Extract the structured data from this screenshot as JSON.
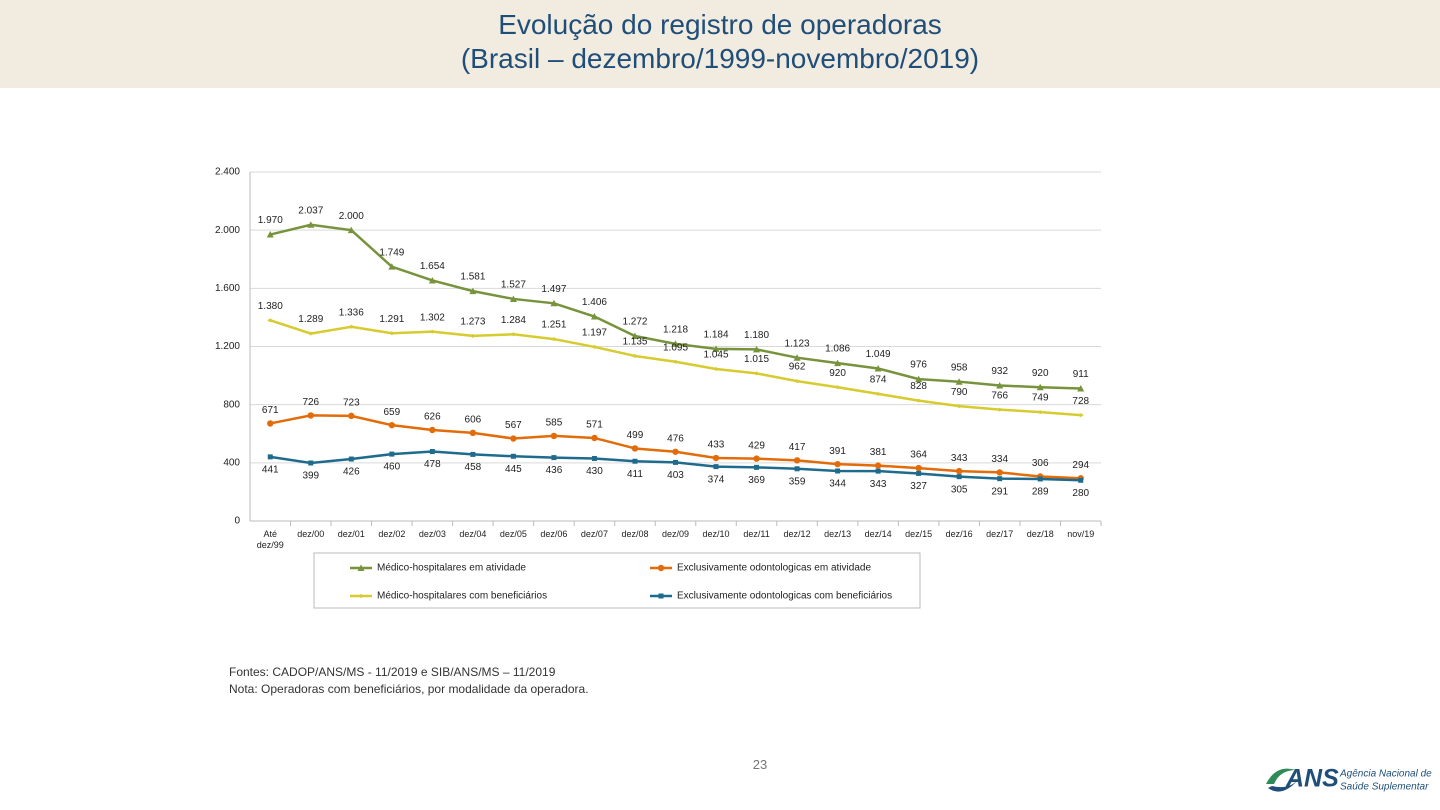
{
  "header": {
    "title": "Evolução do registro de operadoras",
    "subtitle": "(Brasil – dezembro/1999-novembro/2019)"
  },
  "chart_data": {
    "type": "line",
    "categories": [
      "Até dez/99",
      "dez/00",
      "dez/01",
      "dez/02",
      "dez/03",
      "dez/04",
      "dez/05",
      "dez/06",
      "dez/07",
      "dez/08",
      "dez/09",
      "dez/10",
      "dez/11",
      "dez/12",
      "dez/13",
      "dez/14",
      "dez/15",
      "dez/16",
      "dez/17",
      "dez/18",
      "nov/19"
    ],
    "ylim": [
      0,
      2400
    ],
    "yticks": [
      0,
      {
        "value": 400,
        "label": "400"
      },
      {
        "value": 800,
        "label": "800"
      },
      {
        "value": 1200,
        "label": "1.200"
      },
      {
        "value": 1600,
        "label": "1.600"
      },
      {
        "value": 2000,
        "label": "2.000"
      },
      {
        "value": 2400,
        "label": "2.400"
      }
    ],
    "grid": true,
    "series": [
      {
        "name": "Médico-hospitalares em atividade",
        "color": "#77933c",
        "marker": "triangle",
        "values": [
          1970,
          2037,
          2000,
          1749,
          1654,
          1581,
          1527,
          1497,
          1406,
          1272,
          1218,
          1184,
          1180,
          1123,
          1086,
          1049,
          976,
          958,
          932,
          920,
          911
        ],
        "value_labels": [
          "1.970",
          "2.037",
          "2.000",
          "1.749",
          "1.654",
          "1.581",
          "1.527",
          "1.497",
          "1.406",
          "1.272",
          "1.218",
          "1.184",
          "1.180",
          "1.123",
          "1.086",
          "1.049",
          "976",
          "958",
          "932",
          "920",
          "911"
        ]
      },
      {
        "name": "Exclusivamente odontologicas em atividade",
        "color": "#e36c0a",
        "marker": "circle",
        "values": [
          671,
          726,
          723,
          659,
          626,
          606,
          567,
          585,
          571,
          499,
          476,
          433,
          429,
          417,
          391,
          381,
          364,
          343,
          334,
          306,
          294
        ]
      },
      {
        "name": "Médico-hospitalares com beneficiários",
        "color": "#d6cb2f",
        "marker": "diamond",
        "values": [
          1380,
          1289,
          1336,
          1291,
          1302,
          1273,
          1284,
          1251,
          1197,
          1135,
          1095,
          1045,
          1015,
          962,
          920,
          874,
          828,
          790,
          766,
          749,
          728
        ],
        "value_labels": [
          "1.380",
          "1.289",
          "1.336",
          "1.291",
          "1.302",
          "1.273",
          "1.284",
          "1.251",
          "1.197",
          "1.135",
          "1.095",
          "1.045",
          "1.015",
          "962",
          "920",
          "874",
          "828",
          "790",
          "766",
          "749",
          "728"
        ]
      },
      {
        "name": "Exclusivamente odontologicas com beneficiários",
        "color": "#1f6b8e",
        "marker": "square",
        "values": [
          441,
          399,
          426,
          460,
          478,
          458,
          445,
          436,
          430,
          411,
          403,
          374,
          369,
          359,
          344,
          343,
          327,
          305,
          291,
          289,
          280
        ]
      }
    ]
  },
  "notes": [
    "Fontes: CADOP/ANS/MS - 11/2019 e SIB/ANS/MS – 11/2019",
    "Nota: Operadoras com beneficiários, por modalidade da operadora."
  ],
  "page_number": "23",
  "logo": {
    "mark": "ANS",
    "line1": "Agência Nacional de",
    "line2": "Saúde Suplementar"
  }
}
